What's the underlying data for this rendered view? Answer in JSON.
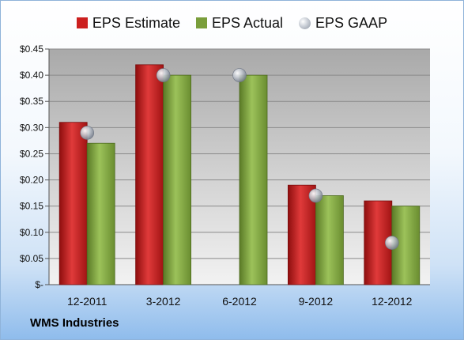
{
  "footer": {
    "company": "WMS Industries"
  },
  "legend": {
    "items": [
      {
        "name": "EPS Estimate",
        "color": "#cc1f1f"
      },
      {
        "name": "EPS Actual",
        "color": "#7a9e3b"
      },
      {
        "name": "EPS GAAP",
        "color": "#b8bec8"
      }
    ]
  },
  "chart_data": {
    "type": "bar",
    "categories": [
      "12-2011",
      "3-2012",
      "6-2012",
      "9-2012",
      "12-2012"
    ],
    "series": [
      {
        "name": "EPS Estimate",
        "values": [
          0.31,
          0.42,
          null,
          0.19,
          0.16
        ]
      },
      {
        "name": "EPS Actual",
        "values": [
          0.27,
          0.4,
          0.4,
          0.17,
          0.15
        ]
      },
      {
        "name": "EPS GAAP",
        "values": [
          0.29,
          0.4,
          0.4,
          0.17,
          0.08
        ],
        "marker": "circle"
      }
    ],
    "y_ticks": [
      "$-",
      "$0.05",
      "$0.10",
      "$0.15",
      "$0.20",
      "$0.25",
      "$0.30",
      "$0.35",
      "$0.40",
      "$0.45"
    ],
    "ylim": [
      0,
      0.45
    ],
    "grid": true,
    "legend_position": "top"
  }
}
